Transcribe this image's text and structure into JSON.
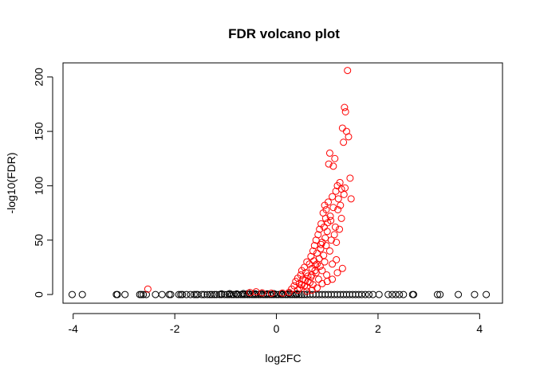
{
  "chart_data": {
    "type": "scatter",
    "title": "FDR volcano plot",
    "xlabel": "log2FC",
    "ylabel": "-log10(FDR)",
    "xlim": [
      -4.2,
      4.45
    ],
    "ylim": [
      -8,
      213
    ],
    "x_ticks": [
      -4,
      -2,
      0,
      2,
      4
    ],
    "y_ticks": [
      0,
      50,
      100,
      150,
      200
    ],
    "grid": false,
    "legend": "none",
    "colors": {
      "significant": "#ff0000",
      "not_significant": "#000000",
      "axes": "#000000"
    },
    "series": [
      {
        "color": "#000000",
        "points": [
          [
            -4.02,
            0
          ],
          [
            -3.82,
            0
          ],
          [
            -3.15,
            0
          ],
          [
            -3.13,
            0
          ],
          [
            -2.98,
            0
          ],
          [
            -2.69,
            0
          ],
          [
            -2.66,
            0
          ],
          [
            -2.62,
            0
          ],
          [
            -2.56,
            0
          ],
          [
            -2.38,
            0
          ],
          [
            -2.25,
            0
          ],
          [
            -2.11,
            0
          ],
          [
            -2.08,
            0
          ],
          [
            -1.92,
            0
          ],
          [
            -1.88,
            0
          ],
          [
            -1.85,
            0
          ],
          [
            -1.77,
            0
          ],
          [
            -1.69,
            0
          ],
          [
            -1.62,
            0
          ],
          [
            -1.58,
            0
          ],
          [
            -1.55,
            0
          ],
          [
            -1.47,
            0
          ],
          [
            -1.42,
            0
          ],
          [
            -1.36,
            0
          ],
          [
            -1.31,
            0
          ],
          [
            -1.27,
            0
          ],
          [
            -1.22,
            0
          ],
          [
            -1.18,
            0
          ],
          [
            -1.12,
            0
          ],
          [
            -1.08,
            0
          ],
          [
            -1.02,
            0
          ],
          [
            -0.97,
            0
          ],
          [
            -0.93,
            0
          ],
          [
            -0.88,
            0
          ],
          [
            -0.84,
            0
          ],
          [
            -0.79,
            0
          ],
          [
            -0.75,
            0
          ],
          [
            -0.7,
            0
          ],
          [
            -0.66,
            0
          ],
          [
            -0.62,
            0
          ],
          [
            -0.57,
            0
          ],
          [
            -0.53,
            0
          ],
          [
            -0.48,
            0
          ],
          [
            -0.44,
            0
          ],
          [
            -0.4,
            0
          ],
          [
            -0.35,
            0
          ],
          [
            -0.31,
            0
          ],
          [
            -0.26,
            0
          ],
          [
            -0.22,
            0
          ],
          [
            -0.18,
            0
          ],
          [
            -0.13,
            0
          ],
          [
            -0.09,
            0
          ],
          [
            -0.05,
            0
          ],
          [
            0.0,
            0
          ],
          [
            0.04,
            0
          ],
          [
            0.09,
            0
          ],
          [
            0.13,
            0
          ],
          [
            0.18,
            0
          ],
          [
            0.22,
            0
          ],
          [
            0.27,
            0
          ],
          [
            0.31,
            0
          ],
          [
            0.36,
            0
          ],
          [
            0.4,
            0
          ],
          [
            0.45,
            0
          ],
          [
            0.5,
            0
          ],
          [
            0.55,
            0
          ],
          [
            0.6,
            0
          ],
          [
            0.66,
            0
          ],
          [
            0.72,
            0
          ],
          [
            0.78,
            0
          ],
          [
            0.84,
            0
          ],
          [
            0.9,
            0
          ],
          [
            0.96,
            0
          ],
          [
            1.02,
            0
          ],
          [
            1.08,
            0
          ],
          [
            1.14,
            0
          ],
          [
            1.2,
            0
          ],
          [
            1.26,
            0
          ],
          [
            1.32,
            0
          ],
          [
            1.38,
            0
          ],
          [
            1.44,
            0
          ],
          [
            1.5,
            0
          ],
          [
            1.56,
            0
          ],
          [
            1.62,
            0
          ],
          [
            1.68,
            0
          ],
          [
            1.75,
            0
          ],
          [
            1.82,
            0
          ],
          [
            1.9,
            0
          ],
          [
            2.02,
            0
          ],
          [
            2.2,
            0
          ],
          [
            2.28,
            0
          ],
          [
            2.35,
            0
          ],
          [
            2.42,
            0
          ],
          [
            2.5,
            0
          ],
          [
            2.68,
            0
          ],
          [
            2.7,
            0
          ],
          [
            3.17,
            0
          ],
          [
            3.22,
            0
          ],
          [
            3.58,
            0
          ],
          [
            3.9,
            0
          ],
          [
            4.13,
            0
          ],
          [
            -1.08,
            0.6
          ],
          [
            -0.92,
            0.8
          ],
          [
            -0.78,
            0.5
          ],
          [
            -0.65,
            0.9
          ],
          [
            -0.55,
            1.1
          ],
          [
            -0.42,
            0.7
          ],
          [
            -0.3,
            0.9
          ],
          [
            -0.18,
            0.6
          ],
          [
            -0.05,
            0.8
          ],
          [
            0.1,
            0.7
          ],
          [
            0.25,
            0.9
          ],
          [
            0.4,
            0.6
          ]
        ]
      },
      {
        "color": "#ff0000",
        "points": [
          [
            -2.53,
            5
          ],
          [
            -0.52,
            1.8
          ],
          [
            -0.4,
            2.5
          ],
          [
            -0.28,
            1.5
          ],
          [
            -0.1,
            1.2
          ],
          [
            0.12,
            1.3
          ],
          [
            0.25,
            2.0
          ],
          [
            0.3,
            5
          ],
          [
            0.35,
            8
          ],
          [
            0.38,
            12
          ],
          [
            0.42,
            15
          ],
          [
            0.45,
            10
          ],
          [
            0.48,
            18
          ],
          [
            0.5,
            22
          ],
          [
            0.52,
            14
          ],
          [
            0.55,
            25
          ],
          [
            0.58,
            20
          ],
          [
            0.6,
            30
          ],
          [
            0.62,
            17
          ],
          [
            0.65,
            28
          ],
          [
            0.68,
            35
          ],
          [
            0.7,
            24
          ],
          [
            0.72,
            40
          ],
          [
            0.74,
            31
          ],
          [
            0.75,
            45
          ],
          [
            0.77,
            27
          ],
          [
            0.78,
            50
          ],
          [
            0.8,
            38
          ],
          [
            0.82,
            55
          ],
          [
            0.84,
            33
          ],
          [
            0.85,
            60
          ],
          [
            0.87,
            42
          ],
          [
            0.88,
            65
          ],
          [
            0.9,
            48
          ],
          [
            0.92,
            75
          ],
          [
            0.93,
            36
          ],
          [
            0.95,
            82
          ],
          [
            0.96,
            52
          ],
          [
            0.98,
            78
          ],
          [
            1.0,
            58
          ],
          [
            1.02,
            85
          ],
          [
            1.03,
            120
          ],
          [
            1.05,
            130
          ],
          [
            1.07,
            68
          ],
          [
            1.1,
            90
          ],
          [
            1.12,
            118
          ],
          [
            1.15,
            125
          ],
          [
            1.17,
            95
          ],
          [
            1.2,
            100
          ],
          [
            1.22,
            88
          ],
          [
            1.25,
            103
          ],
          [
            1.28,
            97
          ],
          [
            1.3,
            153
          ],
          [
            1.32,
            140
          ],
          [
            1.34,
            172
          ],
          [
            1.36,
            168
          ],
          [
            1.38,
            150
          ],
          [
            1.4,
            206
          ],
          [
            1.42,
            145
          ],
          [
            1.45,
            107
          ],
          [
            1.47,
            88
          ],
          [
            0.55,
            8
          ],
          [
            0.62,
            12
          ],
          [
            0.68,
            16
          ],
          [
            0.72,
            9
          ],
          [
            0.78,
            20
          ],
          [
            0.83,
            14
          ],
          [
            0.86,
            26
          ],
          [
            0.9,
            22
          ],
          [
            0.95,
            30
          ],
          [
            0.99,
            18
          ],
          [
            1.05,
            40
          ],
          [
            1.1,
            28
          ],
          [
            1.14,
            55
          ],
          [
            1.18,
            32
          ],
          [
            0.88,
            46
          ],
          [
            0.94,
            62
          ],
          [
            0.97,
            70
          ],
          [
            1.01,
            66
          ],
          [
            1.06,
            72
          ],
          [
            1.12,
            80
          ],
          [
            1.16,
            62
          ],
          [
            1.21,
            78
          ],
          [
            1.26,
            82
          ],
          [
            1.33,
            92
          ],
          [
            0.8,
            28
          ],
          [
            0.76,
            22
          ],
          [
            0.7,
            18
          ],
          [
            0.66,
            11
          ],
          [
            0.6,
            7
          ],
          [
            0.57,
            13
          ],
          [
            0.5,
            9
          ],
          [
            0.46,
            6
          ],
          [
            0.42,
            4
          ],
          [
            0.6,
            3
          ],
          [
            0.7,
            4
          ],
          [
            0.8,
            6
          ],
          [
            0.9,
            10
          ],
          [
            1.0,
            12
          ],
          [
            1.1,
            14
          ],
          [
            1.2,
            20
          ],
          [
            1.3,
            24
          ],
          [
            0.98,
            45
          ],
          [
            1.08,
            50
          ],
          [
            1.18,
            48
          ],
          [
            1.24,
            60
          ],
          [
            1.28,
            70
          ],
          [
            1.35,
            98
          ]
        ]
      }
    ]
  }
}
